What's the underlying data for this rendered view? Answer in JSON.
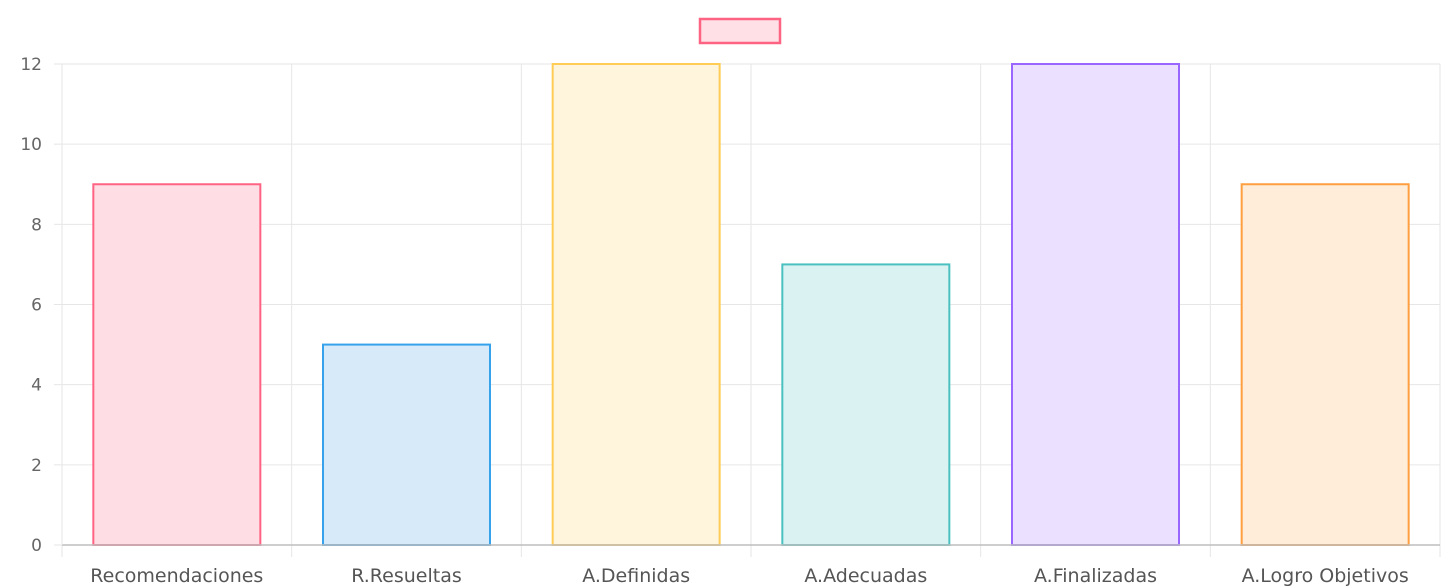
{
  "chart_data": {
    "type": "bar",
    "categories": [
      "Recomendaciones",
      "R.Resueltas",
      "A.Definidas",
      "A.Adecuadas",
      "A.Finalizadas",
      "A.Logro Objetivos"
    ],
    "series": [
      {
        "values": [
          9,
          5,
          12,
          7,
          12,
          9
        ]
      }
    ],
    "ylim": [
      0,
      12
    ],
    "yticks": [
      "0",
      "2",
      "4",
      "6",
      "8",
      "10",
      "12"
    ],
    "grid": true,
    "legend": "top-center",
    "legend_color": "#ff6384",
    "bar_colors": [
      {
        "border": "#ff6384",
        "fill": "#ffdde4"
      },
      {
        "border": "#36a2eb",
        "fill": "#d6eaf9"
      },
      {
        "border": "#ffcd56",
        "fill": "#fff4dc"
      },
      {
        "border": "#4bc0c0",
        "fill": "#dbf2f2"
      },
      {
        "border": "#9966ff",
        "fill": "#ebe0ff"
      },
      {
        "border": "#ff9f40",
        "fill": "#ffecd9"
      }
    ],
    "grid_color": "#e6e6e6",
    "axis_color": "#bdbdbd"
  }
}
